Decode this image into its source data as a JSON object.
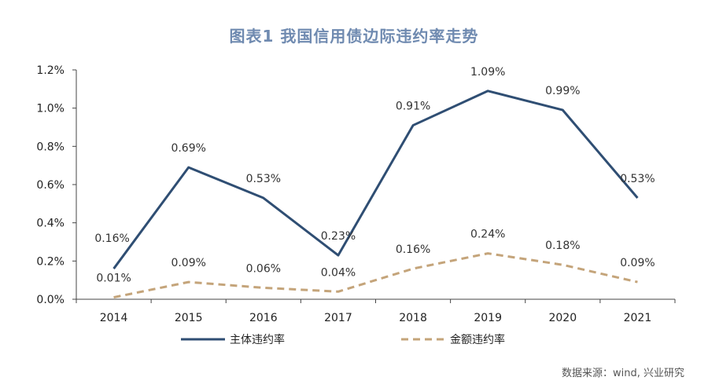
{
  "title": "图表1  我国信用债边际违约率走势",
  "source": "数据来源：wind, 兴业研究",
  "chart_data": {
    "type": "line",
    "categories": [
      "2014",
      "2015",
      "2016",
      "2017",
      "2018",
      "2019",
      "2020",
      "2021"
    ],
    "series": [
      {
        "name": "主体违约率",
        "values": [
          0.16,
          0.69,
          0.53,
          0.23,
          0.91,
          1.09,
          0.99,
          0.53
        ],
        "labels": [
          "0.16%",
          "0.69%",
          "0.53%",
          "0.23%",
          "0.91%",
          "1.09%",
          "0.99%",
          "0.53%"
        ],
        "color": "#2f4e73",
        "style": "solid"
      },
      {
        "name": "金额违约率",
        "values": [
          0.01,
          0.09,
          0.06,
          0.04,
          0.16,
          0.24,
          0.18,
          0.09
        ],
        "labels": [
          "0.01%",
          "0.09%",
          "0.06%",
          "0.04%",
          "0.16%",
          "0.24%",
          "0.18%",
          "0.09%"
        ],
        "color": "#c4a47a",
        "style": "dashed"
      }
    ],
    "y_ticks": [
      "0.0%",
      "0.2%",
      "0.4%",
      "0.6%",
      "0.8%",
      "1.0%",
      "1.2%"
    ],
    "ylim": [
      0,
      1.2
    ],
    "grid": false,
    "legend": "bottom"
  }
}
